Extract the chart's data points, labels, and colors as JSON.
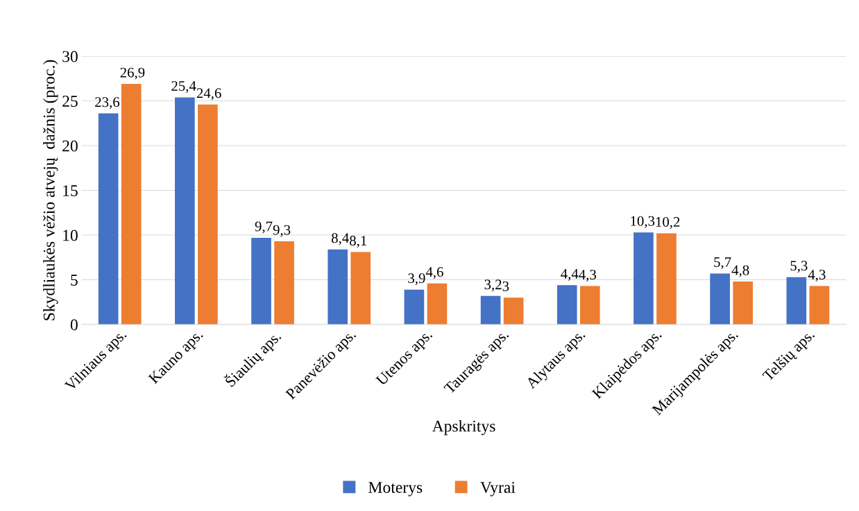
{
  "chart_data": {
    "type": "bar",
    "xlabel": "Apskritys",
    "ylabel": "Skydliaukės vėžio atvejų  dažnis (proc.)",
    "categories": [
      "Vilniaus aps.",
      "Kauno aps.",
      "Šiaulių aps.",
      "Panevėžio aps.",
      "Utenos aps.",
      "Tauragės aps.",
      "Alytaus aps.",
      "Klaipėdos aps.",
      "Marijampolės aps.",
      "Telšių aps."
    ],
    "series": [
      {
        "name": "Moterys",
        "color": "#4472c4",
        "values": [
          23.6,
          25.4,
          9.7,
          8.4,
          3.9,
          3.2,
          4.4,
          10.3,
          5.7,
          5.3
        ],
        "value_labels": [
          "23,6",
          "25,4",
          "9,7",
          "8,4",
          "3,9",
          "3,2",
          "4,4",
          "10,3",
          "5,7",
          "5,3"
        ]
      },
      {
        "name": "Vyrai",
        "color": "#ed7d31",
        "values": [
          26.9,
          24.6,
          9.3,
          8.1,
          4.6,
          3,
          4.3,
          10.2,
          4.8,
          4.3
        ],
        "value_labels": [
          "26,9",
          "24,6",
          "9,3",
          "8,1",
          "4,6",
          "3",
          "4,3",
          "10,2",
          "4,8",
          "4,3"
        ]
      }
    ],
    "ylim": [
      0,
      30
    ],
    "yticks": [
      0,
      5,
      10,
      15,
      20,
      25,
      30
    ],
    "grid": "y",
    "legend": "bottom"
  }
}
